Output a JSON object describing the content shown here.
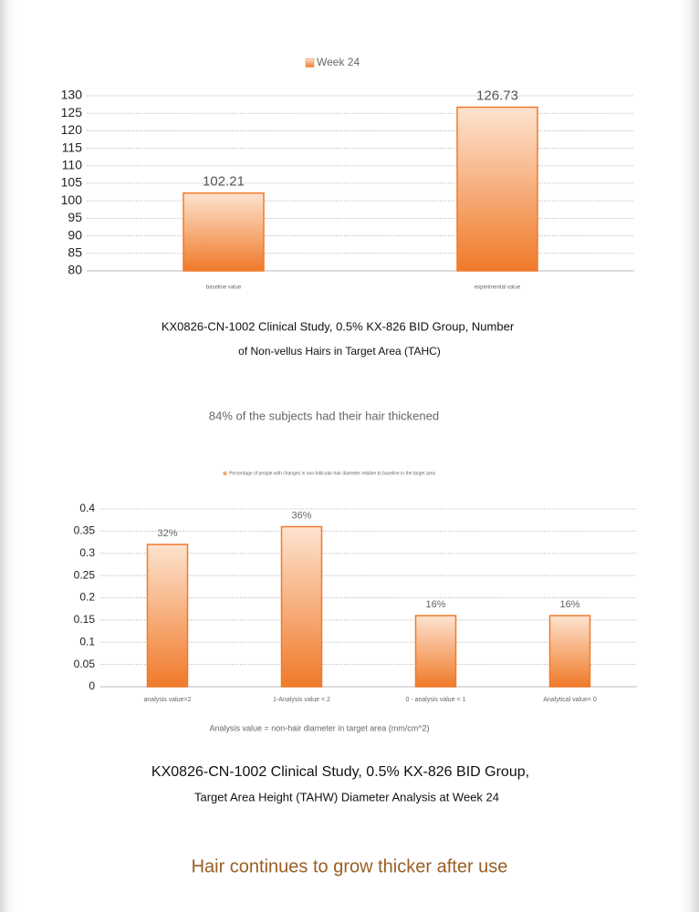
{
  "chart_data": [
    {
      "type": "bar",
      "legend": "Week 24",
      "color": "#f07a2a",
      "categories": [
        "baseline value",
        "experimental value"
      ],
      "values": [
        102.21,
        126.73
      ],
      "ylim": [
        80,
        130
      ],
      "yticks": [
        80,
        85,
        90,
        95,
        100,
        105,
        110,
        115,
        120,
        125,
        130
      ],
      "grid": true,
      "caption": [
        "KX0826-CN-1002 Clinical Study, 0.5% KX-826 BID Group, Number",
        "of Non-vellus Hairs in Target Area (TAHC)"
      ]
    },
    {
      "type": "bar",
      "legend": "Percentage of people with changes in non-follicular hair diameter relative to baseline in the target area",
      "color": "#f07a2a",
      "categories": [
        "analysis value=2",
        "1-Analysis value < 2",
        "0 - analysis value < 1",
        "Analytical value< 0"
      ],
      "values": [
        0.32,
        0.36,
        0.16,
        0.16
      ],
      "value_labels": [
        "32%",
        "36%",
        "16%",
        "16%"
      ],
      "ylim": [
        0,
        0.4
      ],
      "yticks": [
        0,
        0.05,
        0.1,
        0.15,
        0.2,
        0.25,
        0.3,
        0.35,
        0.4
      ],
      "grid": true,
      "xlabel": "Analysis value = non-hair diameter in target area (mm/cm^2)",
      "caption": [
        "KX0826-CN-1002 Clinical Study, 0.5% KX-826 BID Group,",
        "Target Area Height (TAHW) Diameter Analysis at Week 24"
      ]
    }
  ],
  "notes": {
    "summary": "84% of the subjects had their hair thickened",
    "footer": "Hair continues to grow thicker after use"
  }
}
